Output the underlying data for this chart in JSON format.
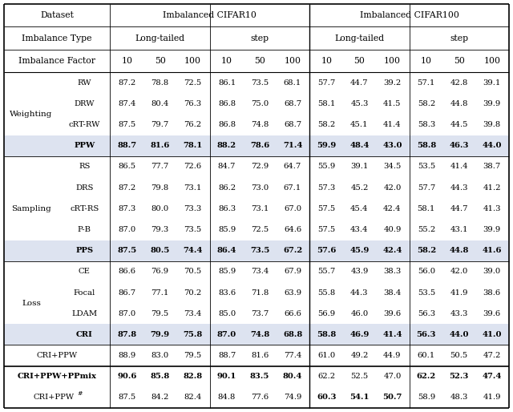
{
  "figsize": [
    6.4,
    5.14
  ],
  "dpi": 100,
  "groups": [
    {
      "name": "Weighting",
      "rows": [
        {
          "method": "RW",
          "vals": [
            "87.2",
            "78.8",
            "72.5",
            "86.1",
            "73.5",
            "68.1",
            "57.7",
            "44.7",
            "39.2",
            "57.1",
            "42.8",
            "39.1"
          ],
          "bold_method": false,
          "bold_vals": []
        },
        {
          "method": "DRW",
          "vals": [
            "87.4",
            "80.4",
            "76.3",
            "86.8",
            "75.0",
            "68.7",
            "58.1",
            "45.3",
            "41.5",
            "58.2",
            "44.8",
            "39.9"
          ],
          "bold_method": false,
          "bold_vals": []
        },
        {
          "method": "cRT-RW",
          "vals": [
            "87.5",
            "79.7",
            "76.2",
            "86.8",
            "74.8",
            "68.7",
            "58.2",
            "45.1",
            "41.4",
            "58.3",
            "44.5",
            "39.8"
          ],
          "bold_method": false,
          "bold_vals": []
        },
        {
          "method": "PPW",
          "vals": [
            "88.7",
            "81.6",
            "78.1",
            "88.2",
            "78.6",
            "71.4",
            "59.9",
            "48.4",
            "43.0",
            "58.8",
            "46.3",
            "44.0"
          ],
          "bold_method": true,
          "bold_vals": [
            0,
            1,
            2,
            3,
            4,
            5,
            6,
            7,
            8,
            9,
            10,
            11
          ],
          "highlight": true
        }
      ]
    },
    {
      "name": "Sampling",
      "rows": [
        {
          "method": "RS",
          "vals": [
            "86.5",
            "77.7",
            "72.6",
            "84.7",
            "72.9",
            "64.7",
            "55.9",
            "39.1",
            "34.5",
            "53.5",
            "41.4",
            "38.7"
          ],
          "bold_method": false,
          "bold_vals": []
        },
        {
          "method": "DRS",
          "vals": [
            "87.2",
            "79.8",
            "73.1",
            "86.2",
            "73.0",
            "67.1",
            "57.3",
            "45.2",
            "42.0",
            "57.7",
            "44.3",
            "41.2"
          ],
          "bold_method": false,
          "bold_vals": []
        },
        {
          "method": "cRT-RS",
          "vals": [
            "87.3",
            "80.0",
            "73.3",
            "86.3",
            "73.1",
            "67.0",
            "57.5",
            "45.4",
            "42.4",
            "58.1",
            "44.7",
            "41.3"
          ],
          "bold_method": false,
          "bold_vals": []
        },
        {
          "method": "P-B",
          "vals": [
            "87.0",
            "79.3",
            "73.5",
            "85.9",
            "72.5",
            "64.6",
            "57.5",
            "43.4",
            "40.9",
            "55.2",
            "43.1",
            "39.9"
          ],
          "bold_method": false,
          "bold_vals": []
        },
        {
          "method": "PPS",
          "vals": [
            "87.5",
            "80.5",
            "74.4",
            "86.4",
            "73.5",
            "67.2",
            "57.6",
            "45.9",
            "42.4",
            "58.2",
            "44.8",
            "41.6"
          ],
          "bold_method": true,
          "bold_vals": [
            0,
            1,
            2,
            3,
            4,
            5,
            6,
            7,
            8,
            9,
            10,
            11
          ],
          "highlight": true
        }
      ]
    },
    {
      "name": "Loss",
      "rows": [
        {
          "method": "CE",
          "vals": [
            "86.6",
            "76.9",
            "70.5",
            "85.9",
            "73.4",
            "67.9",
            "55.7",
            "43.9",
            "38.3",
            "56.0",
            "42.0",
            "39.0"
          ],
          "bold_method": false,
          "bold_vals": []
        },
        {
          "method": "Focal",
          "vals": [
            "86.7",
            "77.1",
            "70.2",
            "83.6",
            "71.8",
            "63.9",
            "55.8",
            "44.3",
            "38.4",
            "53.5",
            "41.9",
            "38.6"
          ],
          "bold_method": false,
          "bold_vals": []
        },
        {
          "method": "LDAM",
          "vals": [
            "87.0",
            "79.5",
            "73.4",
            "85.0",
            "73.7",
            "66.6",
            "56.9",
            "46.0",
            "39.6",
            "56.3",
            "43.3",
            "39.6"
          ],
          "bold_method": false,
          "bold_vals": []
        },
        {
          "method": "CRI",
          "vals": [
            "87.8",
            "79.9",
            "75.8",
            "87.0",
            "74.8",
            "68.8",
            "58.8",
            "46.9",
            "41.4",
            "56.3",
            "44.0",
            "41.0"
          ],
          "bold_method": true,
          "bold_vals": [
            0,
            1,
            2,
            3,
            4,
            5,
            6,
            7,
            8,
            9,
            10,
            11
          ],
          "highlight": true
        }
      ]
    }
  ],
  "bottom_rows": [
    {
      "method": "CRI+PPW",
      "bold_method": false,
      "vals": [
        "88.9",
        "83.0",
        "79.5",
        "88.7",
        "81.6",
        "77.4",
        "61.0",
        "49.2",
        "44.9",
        "60.1",
        "50.5",
        "47.2"
      ],
      "bold_vals": []
    },
    {
      "method": "CRI+PPW+PPmix",
      "bold_method": true,
      "vals": [
        "90.6",
        "85.8",
        "82.8",
        "90.1",
        "83.5",
        "80.4",
        "62.2",
        "52.5",
        "47.0",
        "62.2",
        "52.3",
        "47.4"
      ],
      "bold_vals": [
        0,
        1,
        2,
        3,
        4,
        5,
        9,
        10,
        11
      ]
    },
    {
      "method": "CRI+PPW#",
      "bold_method": false,
      "vals": [
        "87.5",
        "84.2",
        "82.4",
        "84.8",
        "77.6",
        "74.9",
        "60.3",
        "54.1",
        "50.7",
        "58.9",
        "48.3",
        "41.9"
      ],
      "bold_vals": [
        6,
        7,
        8
      ]
    }
  ],
  "bg_highlight": "#dde3f0",
  "bg_white": "#ffffff",
  "line_color": "#000000",
  "thick_lw": 1.0,
  "thin_lw": 0.5,
  "fs_header": 7.8,
  "fs_data": 7.2,
  "fs_group": 7.5
}
